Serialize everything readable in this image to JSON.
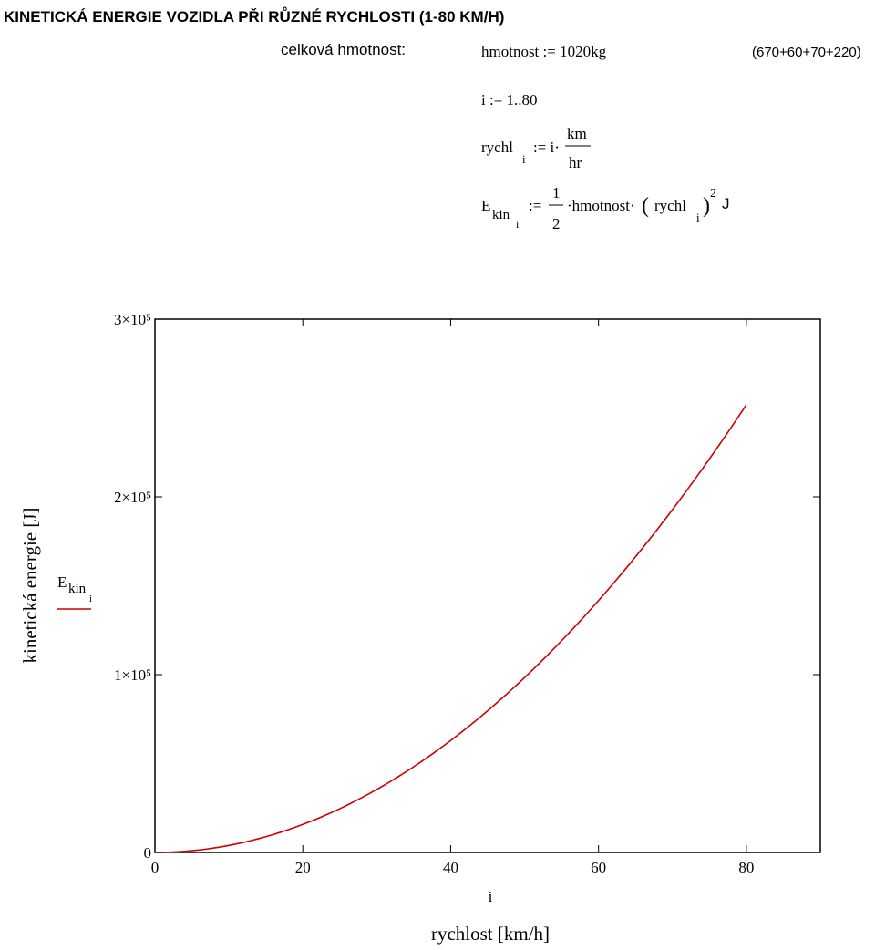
{
  "title": "KINETICKÁ ENERGIE VOZIDLA PŘI RŮZNÉ RYCHLOSTI (1-80 KM/H)",
  "mass_label": "celková hmotnost:",
  "mass_def": "hmotnost := 1020kg",
  "mass_note": "(670+60+70+220)",
  "range_def": "i := 1..80",
  "speed_def": [
    "rychl",
    "i",
    ":= i·",
    "km",
    "hr"
  ],
  "energy_def": [
    "E",
    "kin",
    "i",
    ":=",
    "1",
    "2",
    "·hmotnost·",
    "(",
    "rychl",
    "i",
    ")",
    "2",
    "J"
  ],
  "chart_data": {
    "type": "line",
    "x_label": "rychlost [km/h]",
    "x_expr": "i",
    "y_label": "kinetická energie [J]",
    "xlim": [
      0,
      90
    ],
    "xticks": [
      0,
      20,
      40,
      60,
      80
    ],
    "ylim": [
      0,
      300000
    ],
    "yticks": [
      0,
      {
        "value": 100000,
        "label": "1×10⁵"
      },
      {
        "value": 200000,
        "label": "2×10⁵"
      },
      {
        "value": 300000,
        "label": "3×10⁵"
      }
    ],
    "x": [
      1,
      2,
      3,
      4,
      5,
      6,
      7,
      8,
      9,
      10,
      11,
      12,
      13,
      14,
      15,
      16,
      17,
      18,
      19,
      20,
      21,
      22,
      23,
      24,
      25,
      26,
      27,
      28,
      29,
      30,
      31,
      32,
      33,
      34,
      35,
      36,
      37,
      38,
      39,
      40,
      41,
      42,
      43,
      44,
      45,
      46,
      47,
      48,
      49,
      50,
      51,
      52,
      53,
      54,
      55,
      56,
      57,
      58,
      59,
      60,
      61,
      62,
      63,
      64,
      65,
      66,
      67,
      68,
      69,
      70,
      71,
      72,
      73,
      74,
      75,
      76,
      77,
      78,
      79,
      80
    ],
    "series": [
      {
        "name": "E",
        "name_sub": [
          "kin",
          "i"
        ],
        "color": "#cc0000",
        "values": [
          39,
          157,
          354,
          630,
          984,
          1417,
          1928,
          2519,
          3188,
          3935,
          4762,
          5667,
          6650,
          7713,
          8854,
          10074,
          11373,
          12750,
          14206,
          15741,
          17354,
          19046,
          20817,
          22667,
          24595,
          26602,
          28688,
          30852,
          33095,
          35417,
          37817,
          40296,
          42854,
          45491,
          48206,
          51000,
          53873,
          56824,
          59854,
          62963,
          66150,
          69417,
          72762,
          76185,
          79688,
          83269,
          86928,
          90667,
          94484,
          98380,
          102355,
          106408,
          110540,
          114750,
          119040,
          123407,
          127854,
          132380,
          136984,
          141667,
          146428,
          151269,
          156187,
          161185,
          166262,
          171417,
          176651,
          181963,
          187355,
          192824,
          198373,
          204000,
          209706,
          215491,
          221354,
          227296,
          233317,
          239417,
          245595,
          251852
        ]
      }
    ]
  }
}
